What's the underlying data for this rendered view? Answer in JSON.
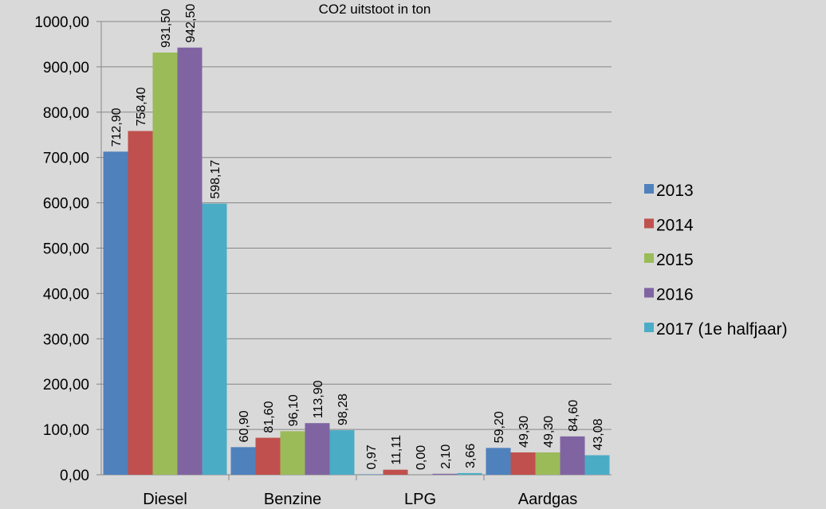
{
  "chart_data": {
    "type": "bar",
    "title": "CO2 uitstoot in ton",
    "xlabel": "",
    "ylabel": "",
    "categories": [
      "Diesel",
      "Benzine",
      "LPG",
      "Aardgas"
    ],
    "ylim": [
      0,
      1000
    ],
    "ytick_step": 100,
    "ytick_labels": [
      "0,00",
      "100,00",
      "200,00",
      "300,00",
      "400,00",
      "500,00",
      "600,00",
      "700,00",
      "800,00",
      "900,00",
      "1000,00"
    ],
    "grid": true,
    "legend_position": "right",
    "series": [
      {
        "name": "2013",
        "color": "#4f81bd",
        "values": [
          712.9,
          60.9,
          0.97,
          59.2
        ],
        "labels": [
          "712,90",
          "60,90",
          "0,97",
          "59,20"
        ]
      },
      {
        "name": "2014",
        "color": "#c0504d",
        "values": [
          758.4,
          81.6,
          11.11,
          49.3
        ],
        "labels": [
          "758,40",
          "81,60",
          "11,11",
          "49,30"
        ]
      },
      {
        "name": "2015",
        "color": "#9bbb59",
        "values": [
          931.5,
          96.1,
          0.0,
          49.3
        ],
        "labels": [
          "931,50",
          "96,10",
          "0,00",
          "49,30"
        ]
      },
      {
        "name": "2016",
        "color": "#8064a2",
        "values": [
          942.5,
          113.9,
          2.1,
          84.6
        ],
        "labels": [
          "942,50",
          "113,90",
          "2,10",
          "84,60"
        ]
      },
      {
        "name": "2017 (1e halfjaar)",
        "color": "#4bacc6",
        "values": [
          598.17,
          98.28,
          3.66,
          43.08
        ],
        "labels": [
          "598,17",
          "98,28",
          "3,66",
          "43,08"
        ]
      }
    ]
  }
}
